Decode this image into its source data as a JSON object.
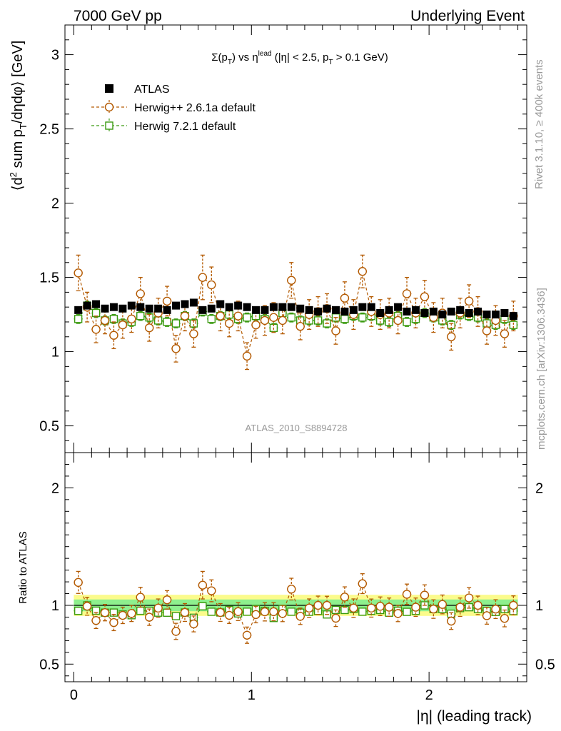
{
  "header": {
    "left": "7000 GeV pp",
    "right": "Underlying Event"
  },
  "side_labels": {
    "rivet": "Rivet 3.1.10, ≥ 400k events",
    "mcplots": "mcplots.cern.ch [arXiv:1306.3436]"
  },
  "analysis_id": "ATLAS_2010_S8894728",
  "colors": {
    "atlas": "#000000",
    "herwigpp": "#b35900",
    "herwig7": "#3a9a10",
    "band_green": "#8ef08e",
    "band_yellow": "#fbfb8c"
  },
  "chart_data": [
    {
      "type": "scatter",
      "panel": "main",
      "title": {
        "sigma": "Σ(p",
        "sub_T": "T",
        "vs": ") vs η",
        "sup_lead": "lead",
        "rest": " (|η| < 2.5, p",
        "sub_T2": "T",
        "end": " > 0.1 GeV)"
      },
      "ylabel": {
        "open": "⟨d",
        "sup2": "2",
        "mid": " sum p",
        "sub_T": "T",
        "end": "/dηdφ⟩ [GeV]"
      },
      "xlim": [
        -0.05,
        2.55
      ],
      "ylim": [
        0.32,
        3.2
      ],
      "yticks": [
        0.5,
        1,
        1.5,
        2,
        2.5,
        3
      ],
      "ytick_labels": [
        "0.5",
        "1",
        "1.5",
        "2",
        "2.5",
        "3"
      ],
      "legend_position": "top-left",
      "x": [
        0.025,
        0.075,
        0.125,
        0.175,
        0.225,
        0.275,
        0.325,
        0.375,
        0.425,
        0.475,
        0.525,
        0.575,
        0.625,
        0.675,
        0.725,
        0.775,
        0.825,
        0.875,
        0.925,
        0.975,
        1.025,
        1.075,
        1.125,
        1.175,
        1.225,
        1.275,
        1.325,
        1.375,
        1.425,
        1.475,
        1.525,
        1.575,
        1.625,
        1.675,
        1.725,
        1.775,
        1.825,
        1.875,
        1.925,
        1.975,
        2.025,
        2.075,
        2.125,
        2.175,
        2.225,
        2.275,
        2.325,
        2.375,
        2.425,
        2.475
      ],
      "series": [
        {
          "name": "ATLAS",
          "marker": "filled-square",
          "y": [
            1.28,
            1.31,
            1.32,
            1.29,
            1.3,
            1.29,
            1.31,
            1.3,
            1.29,
            1.29,
            1.28,
            1.31,
            1.32,
            1.33,
            1.28,
            1.29,
            1.32,
            1.3,
            1.31,
            1.3,
            1.28,
            1.28,
            1.3,
            1.3,
            1.3,
            1.29,
            1.28,
            1.27,
            1.29,
            1.28,
            1.27,
            1.28,
            1.3,
            1.3,
            1.26,
            1.28,
            1.3,
            1.27,
            1.28,
            1.26,
            1.27,
            1.25,
            1.27,
            1.28,
            1.26,
            1.27,
            1.25,
            1.25,
            1.26,
            1.24
          ],
          "err": [
            0.015,
            0.015,
            0.015,
            0.015,
            0.015,
            0.015,
            0.015,
            0.015,
            0.015,
            0.015,
            0.015,
            0.015,
            0.015,
            0.015,
            0.015,
            0.015,
            0.015,
            0.015,
            0.015,
            0.015,
            0.015,
            0.015,
            0.015,
            0.015,
            0.015,
            0.015,
            0.015,
            0.015,
            0.015,
            0.015,
            0.015,
            0.015,
            0.015,
            0.015,
            0.015,
            0.015,
            0.015,
            0.015,
            0.015,
            0.015,
            0.015,
            0.015,
            0.015,
            0.015,
            0.015,
            0.015,
            0.015,
            0.015,
            0.015,
            0.015
          ]
        },
        {
          "name": "Herwig++ 2.6.1a default",
          "marker": "open-circle",
          "y": [
            1.53,
            1.3,
            1.15,
            1.21,
            1.11,
            1.18,
            1.22,
            1.39,
            1.16,
            1.26,
            1.34,
            1.02,
            1.24,
            1.12,
            1.5,
            1.45,
            1.24,
            1.19,
            1.24,
            0.97,
            1.18,
            1.21,
            1.23,
            1.21,
            1.48,
            1.17,
            1.25,
            1.27,
            1.29,
            1.14,
            1.36,
            1.25,
            1.54,
            1.27,
            1.25,
            1.26,
            1.21,
            1.39,
            1.26,
            1.37,
            1.23,
            1.26,
            1.1,
            1.26,
            1.34,
            1.27,
            1.14,
            1.21,
            1.12,
            1.24
          ],
          "err": [
            0.12,
            0.1,
            0.09,
            0.09,
            0.09,
            0.09,
            0.09,
            0.11,
            0.09,
            0.1,
            0.1,
            0.09,
            0.1,
            0.09,
            0.15,
            0.12,
            0.1,
            0.09,
            0.1,
            0.09,
            0.09,
            0.1,
            0.1,
            0.09,
            0.12,
            0.09,
            0.1,
            0.1,
            0.1,
            0.09,
            0.11,
            0.1,
            0.11,
            0.1,
            0.1,
            0.1,
            0.09,
            0.11,
            0.1,
            0.11,
            0.1,
            0.1,
            0.09,
            0.1,
            0.11,
            0.1,
            0.09,
            0.1,
            0.09,
            0.1
          ]
        },
        {
          "name": "Herwig 7.2.1 default",
          "marker": "open-square",
          "y": [
            1.22,
            1.31,
            1.26,
            1.21,
            1.22,
            1.19,
            1.2,
            1.24,
            1.23,
            1.21,
            1.2,
            1.19,
            1.24,
            1.19,
            1.27,
            1.22,
            1.24,
            1.25,
            1.22,
            1.23,
            1.24,
            1.22,
            1.16,
            1.26,
            1.23,
            1.21,
            1.21,
            1.21,
            1.19,
            1.23,
            1.22,
            1.24,
            1.23,
            1.24,
            1.21,
            1.2,
            1.24,
            1.2,
            1.22,
            1.26,
            1.23,
            1.21,
            1.18,
            1.25,
            1.24,
            1.23,
            1.19,
            1.18,
            1.22,
            1.18
          ],
          "err": [
            0.03,
            0.03,
            0.03,
            0.03,
            0.03,
            0.03,
            0.03,
            0.03,
            0.03,
            0.03,
            0.03,
            0.03,
            0.03,
            0.03,
            0.03,
            0.03,
            0.03,
            0.03,
            0.03,
            0.03,
            0.03,
            0.03,
            0.03,
            0.03,
            0.03,
            0.03,
            0.03,
            0.03,
            0.03,
            0.03,
            0.03,
            0.03,
            0.03,
            0.03,
            0.03,
            0.03,
            0.03,
            0.03,
            0.03,
            0.03,
            0.03,
            0.03,
            0.03,
            0.03,
            0.03,
            0.03,
            0.03,
            0.03,
            0.03,
            0.03
          ]
        }
      ]
    },
    {
      "type": "scatter",
      "panel": "ratio",
      "ylabel": "Ratio to ATLAS",
      "xlabel": "|η| (leading track)",
      "xlim": [
        -0.05,
        2.55
      ],
      "ylim": [
        0.35,
        2.3
      ],
      "yticks": [
        0.5,
        1,
        2
      ],
      "ytick_labels": [
        "0.5",
        "1",
        "2"
      ],
      "xticks": [
        0,
        1,
        2
      ],
      "xtick_labels": [
        "0",
        "1",
        "2"
      ],
      "reference_line": 1,
      "bands": {
        "inner_halfwidth": 0.05,
        "outer_halfwidth": 0.09
      }
    }
  ]
}
